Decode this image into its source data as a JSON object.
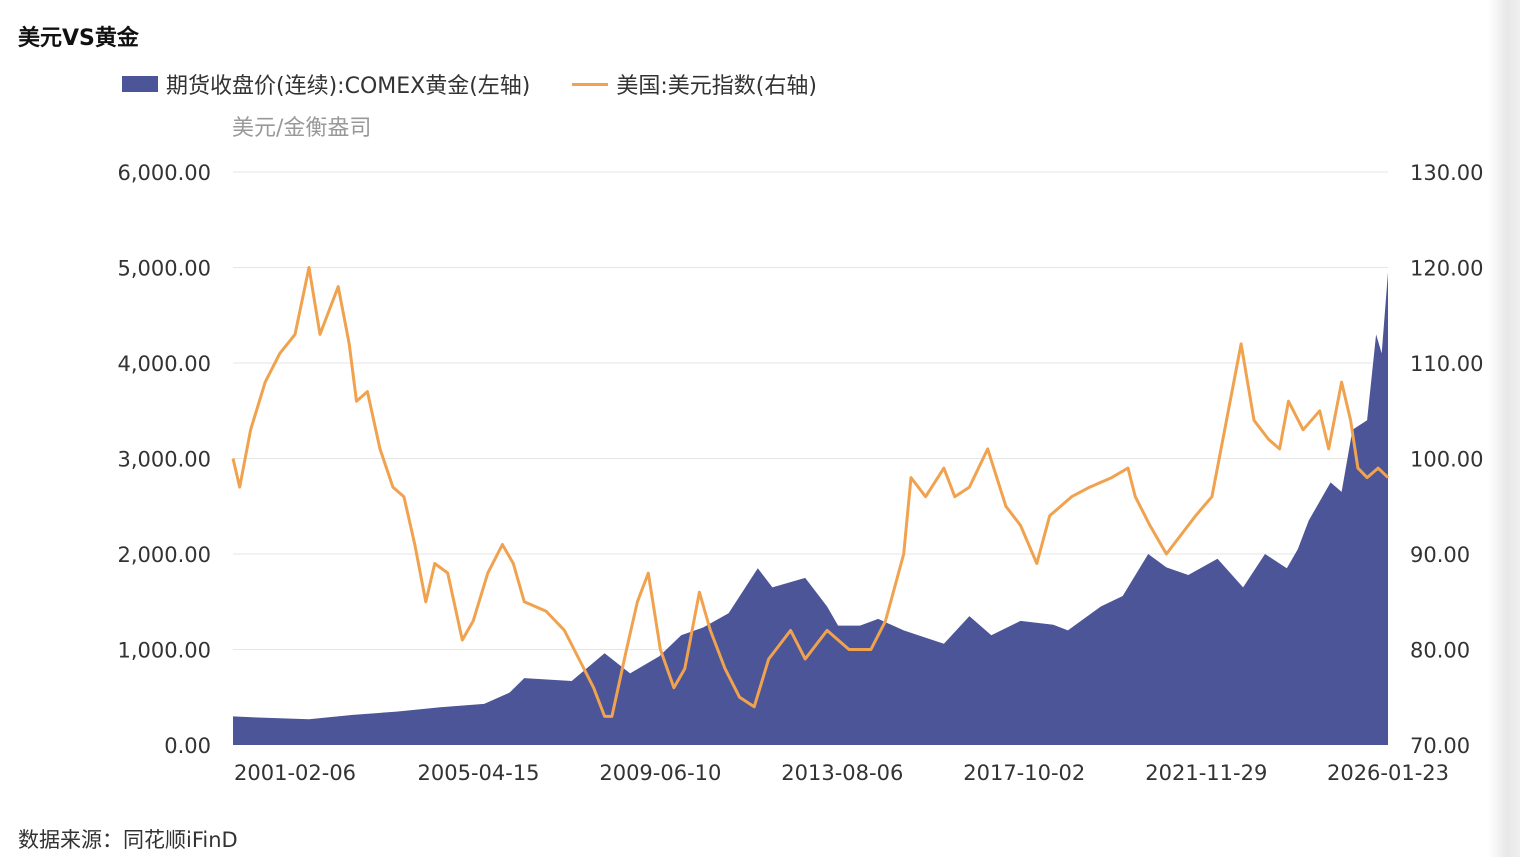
{
  "chart_data": {
    "type": "area+line",
    "title": "美元VS黄金",
    "left_axis_unit": "美元/金衡盎司",
    "source": "数据来源：同花顺iFinD",
    "xlim": [
      "1999-09-06",
      "2026-01-23"
    ],
    "x_ticks": [
      "2001-02-06",
      "2005-04-15",
      "2009-06-10",
      "2013-08-06",
      "2017-10-02",
      "2021-11-29",
      "2026-01-23"
    ],
    "y_left": {
      "ylim": [
        0,
        6000
      ],
      "ticks": [
        "0.00",
        "1,000.00",
        "2,000.00",
        "3,000.00",
        "4,000.00",
        "5,000.00",
        "6,000.00"
      ]
    },
    "y_right": {
      "ylim": [
        70,
        130
      ],
      "ticks": [
        "70.00",
        "80.00",
        "90.00",
        "100.00",
        "110.00",
        "120.00",
        "130.00"
      ]
    },
    "grid": true,
    "legend_position": "top",
    "series": [
      {
        "name": "期货收盘价(连续):COMEX黄金(左轴)",
        "type": "area",
        "axis": "left",
        "color": "#4b5597",
        "points": [
          [
            "1999-09-06",
            300
          ],
          [
            "2000-06-01",
            285
          ],
          [
            "2001-06-01",
            270
          ],
          [
            "2002-06-01",
            315
          ],
          [
            "2003-06-01",
            350
          ],
          [
            "2004-06-01",
            395
          ],
          [
            "2005-06-01",
            430
          ],
          [
            "2006-01-01",
            550
          ],
          [
            "2006-05-01",
            700
          ],
          [
            "2007-06-01",
            670
          ],
          [
            "2008-03-01",
            960
          ],
          [
            "2008-10-01",
            750
          ],
          [
            "2009-06-01",
            930
          ],
          [
            "2009-12-01",
            1150
          ],
          [
            "2010-06-01",
            1230
          ],
          [
            "2011-01-01",
            1380
          ],
          [
            "2011-09-01",
            1850
          ],
          [
            "2012-01-01",
            1650
          ],
          [
            "2012-10-01",
            1750
          ],
          [
            "2013-04-01",
            1450
          ],
          [
            "2013-07-01",
            1250
          ],
          [
            "2014-01-01",
            1250
          ],
          [
            "2014-06-01",
            1320
          ],
          [
            "2015-01-01",
            1200
          ],
          [
            "2015-12-01",
            1060
          ],
          [
            "2016-07-01",
            1350
          ],
          [
            "2017-01-01",
            1150
          ],
          [
            "2017-09-01",
            1300
          ],
          [
            "2018-06-01",
            1260
          ],
          [
            "2018-10-01",
            1200
          ],
          [
            "2019-07-01",
            1450
          ],
          [
            "2020-01-01",
            1560
          ],
          [
            "2020-08-01",
            2000
          ],
          [
            "2021-01-01",
            1860
          ],
          [
            "2021-07-01",
            1780
          ],
          [
            "2022-03-01",
            1950
          ],
          [
            "2022-10-01",
            1650
          ],
          [
            "2023-04-01",
            2000
          ],
          [
            "2023-10-01",
            1850
          ],
          [
            "2024-01-01",
            2050
          ],
          [
            "2024-04-01",
            2350
          ],
          [
            "2024-10-01",
            2750
          ],
          [
            "2025-01-01",
            2650
          ],
          [
            "2025-04-01",
            3300
          ],
          [
            "2025-08-01",
            3400
          ],
          [
            "2025-10-15",
            4300
          ],
          [
            "2025-12-01",
            4100
          ],
          [
            "2026-01-23",
            4950
          ]
        ]
      },
      {
        "name": "美国:美元指数(右轴)",
        "type": "line",
        "axis": "right",
        "color": "#f0a24f",
        "points": [
          [
            "1999-09-06",
            100
          ],
          [
            "1999-11-01",
            97
          ],
          [
            "2000-02-01",
            103
          ],
          [
            "2000-06-01",
            108
          ],
          [
            "2000-10-01",
            111
          ],
          [
            "2001-02-06",
            113
          ],
          [
            "2001-06-01",
            120
          ],
          [
            "2001-09-01",
            113
          ],
          [
            "2002-02-01",
            118
          ],
          [
            "2002-05-01",
            112
          ],
          [
            "2002-07-01",
            106
          ],
          [
            "2002-10-01",
            107
          ],
          [
            "2003-01-15",
            101
          ],
          [
            "2003-05-01",
            97
          ],
          [
            "2003-08-01",
            96
          ],
          [
            "2003-11-01",
            91
          ],
          [
            "2004-02-01",
            85
          ],
          [
            "2004-04-15",
            89
          ],
          [
            "2004-08-01",
            88
          ],
          [
            "2004-12-01",
            81
          ],
          [
            "2005-03-01",
            83
          ],
          [
            "2005-07-01",
            88
          ],
          [
            "2005-11-01",
            91
          ],
          [
            "2006-02-01",
            89
          ],
          [
            "2006-05-01",
            85
          ],
          [
            "2006-11-01",
            84
          ],
          [
            "2007-04-01",
            82
          ],
          [
            "2007-08-01",
            79
          ],
          [
            "2007-12-01",
            76
          ],
          [
            "2008-03-01",
            73
          ],
          [
            "2008-05-01",
            73
          ],
          [
            "2008-09-01",
            80
          ],
          [
            "2008-12-01",
            85
          ],
          [
            "2009-03-01",
            88
          ],
          [
            "2009-06-10",
            80
          ],
          [
            "2009-10-01",
            76
          ],
          [
            "2010-01-01",
            78
          ],
          [
            "2010-05-01",
            86
          ],
          [
            "2010-08-01",
            82
          ],
          [
            "2010-12-01",
            78
          ],
          [
            "2011-04-01",
            75
          ],
          [
            "2011-08-01",
            74
          ],
          [
            "2011-12-01",
            79
          ],
          [
            "2012-06-01",
            82
          ],
          [
            "2012-10-01",
            79
          ],
          [
            "2013-04-01",
            82
          ],
          [
            "2013-10-01",
            80
          ],
          [
            "2014-04-01",
            80
          ],
          [
            "2014-08-01",
            83
          ],
          [
            "2015-01-01",
            90
          ],
          [
            "2015-03-01",
            98
          ],
          [
            "2015-07-01",
            96
          ],
          [
            "2015-12-01",
            99
          ],
          [
            "2016-03-01",
            96
          ],
          [
            "2016-07-01",
            97
          ],
          [
            "2016-12-01",
            101
          ],
          [
            "2017-05-01",
            95
          ],
          [
            "2017-09-01",
            93
          ],
          [
            "2018-01-15",
            89
          ],
          [
            "2018-05-01",
            94
          ],
          [
            "2018-11-01",
            96
          ],
          [
            "2019-04-01",
            97
          ],
          [
            "2019-10-01",
            98
          ],
          [
            "2020-02-15",
            99
          ],
          [
            "2020-04-15",
            96
          ],
          [
            "2020-08-15",
            93
          ],
          [
            "2021-01-01",
            90
          ],
          [
            "2021-05-01",
            92
          ],
          [
            "2021-09-01",
            94
          ],
          [
            "2022-01-15",
            96
          ],
          [
            "2022-05-15",
            104
          ],
          [
            "2022-09-15",
            112
          ],
          [
            "2023-01-01",
            104
          ],
          [
            "2023-05-01",
            102
          ],
          [
            "2023-08-01",
            101
          ],
          [
            "2023-10-15",
            106
          ],
          [
            "2024-02-15",
            103
          ],
          [
            "2024-07-01",
            105
          ],
          [
            "2024-09-15",
            101
          ],
          [
            "2025-01-01",
            108
          ],
          [
            "2025-03-15",
            104
          ],
          [
            "2025-05-15",
            99
          ],
          [
            "2025-08-01",
            98
          ],
          [
            "2025-11-01",
            99
          ],
          [
            "2026-01-23",
            98
          ]
        ]
      }
    ]
  }
}
